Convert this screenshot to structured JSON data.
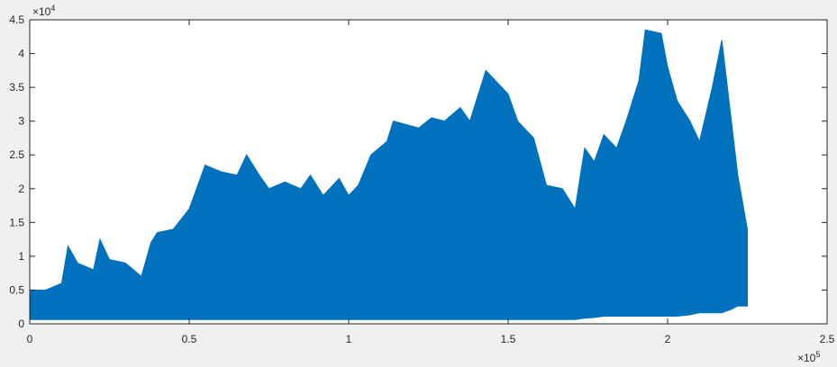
{
  "chart_data": {
    "type": "band",
    "x": [
      0,
      5000,
      10000,
      12000,
      15000,
      20000,
      22000,
      25000,
      30000,
      35000,
      38000,
      40000,
      45000,
      50000,
      55000,
      60000,
      65000,
      68000,
      72000,
      75000,
      80000,
      85000,
      88000,
      92000,
      97000,
      100000,
      103000,
      107000,
      112000,
      114000,
      118000,
      122000,
      126000,
      130000,
      135000,
      138000,
      143000,
      147000,
      150000,
      153000,
      158000,
      160000,
      162000,
      167000,
      171000,
      174000,
      177000,
      180000,
      184000,
      187000,
      191000,
      193000,
      198000,
      200000,
      203000,
      207000,
      210000,
      214000,
      217000,
      220000,
      222000,
      225000
    ],
    "high": [
      5000,
      5000,
      6000,
      11500,
      9000,
      8000,
      12500,
      9500,
      9000,
      7000,
      12000,
      13500,
      14000,
      17000,
      23500,
      22500,
      22000,
      25000,
      22000,
      20000,
      21000,
      20000,
      22000,
      19000,
      21500,
      19000,
      20500,
      25000,
      27000,
      30000,
      29500,
      29000,
      30500,
      30000,
      32000,
      30000,
      37500,
      35500,
      34000,
      30000,
      27500,
      24000,
      20500,
      20000,
      17000,
      26000,
      24000,
      28000,
      26000,
      30000,
      36000,
      43500,
      43000,
      38000,
      33000,
      30000,
      27000,
      35000,
      42000,
      30000,
      22000,
      14000
    ],
    "low": [
      500,
      500,
      500,
      500,
      500,
      500,
      500,
      500,
      500,
      500,
      500,
      500,
      500,
      500,
      500,
      500,
      500,
      500,
      500,
      500,
      500,
      500,
      500,
      500,
      500,
      500,
      500,
      500,
      500,
      500,
      500,
      500,
      500,
      500,
      500,
      500,
      500,
      500,
      500,
      500,
      500,
      500,
      500,
      500,
      500,
      700,
      800,
      1000,
      1000,
      1000,
      1000,
      1000,
      1000,
      1000,
      1000,
      1200,
      1500,
      1500,
      1500,
      2000,
      2500,
      2500
    ],
    "color": "#0072bd",
    "xlim": [
      0,
      250000
    ],
    "ylim": [
      0,
      45000
    ],
    "xticks": [
      0,
      {
        "value": 50000,
        "label": "0.5"
      },
      {
        "value": 100000,
        "label": "1"
      },
      {
        "value": 150000,
        "label": "1.5"
      },
      {
        "value": 200000,
        "label": "2"
      },
      {
        "value": 250000,
        "label": "2.5"
      }
    ],
    "yticks": [
      0,
      {
        "value": 5000,
        "label": "0.5"
      },
      {
        "value": 10000,
        "label": "1"
      },
      {
        "value": 15000,
        "label": "1.5"
      },
      {
        "value": 20000,
        "label": "2"
      },
      {
        "value": 25000,
        "label": "2.5"
      },
      {
        "value": 30000,
        "label": "3"
      },
      {
        "value": 35000,
        "label": "3.5"
      },
      {
        "value": 40000,
        "label": "4"
      },
      {
        "value": 45000,
        "label": "4.5"
      }
    ],
    "x_exponent_base": "×10",
    "x_exponent": "5",
    "y_exponent_base": "×10",
    "y_exponent": "4"
  }
}
